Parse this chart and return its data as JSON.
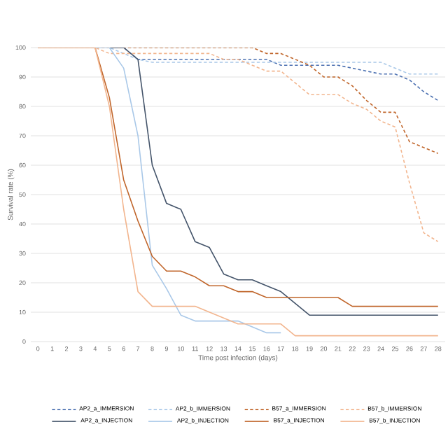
{
  "chart_data": {
    "type": "line",
    "xlabel": "Time post infection (days)",
    "ylabel": "Survival rate (%)",
    "categories": [
      "0",
      "1",
      "2",
      "3",
      "4",
      "5",
      "6",
      "7",
      "8",
      "9",
      "10",
      "11",
      "12",
      "13",
      "14",
      "15",
      "16",
      "17",
      "18",
      "19",
      "20",
      "21",
      "22",
      "23",
      "24",
      "25",
      "26",
      "27",
      "28"
    ],
    "ylim": [
      0,
      100
    ],
    "yticks": [
      0,
      10,
      20,
      30,
      40,
      50,
      60,
      70,
      80,
      90,
      100
    ],
    "grid": "y",
    "legend": "bottom",
    "marker": "none",
    "series": [
      {
        "name": "AP2_a_IMMERSION",
        "color": "#4a6fb0",
        "line_style": "dashed",
        "values": [
          null,
          null,
          null,
          null,
          null,
          100,
          100,
          96,
          96,
          96,
          96,
          96,
          96,
          96,
          96,
          96,
          96,
          94,
          94,
          94,
          94,
          94,
          93,
          92,
          91,
          91,
          89,
          85,
          82
        ]
      },
      {
        "name": "AP2_b_IMMERSION",
        "color": "#a9c8e8",
        "line_style": "dashed",
        "values": [
          null,
          null,
          null,
          null,
          100,
          100,
          98,
          96,
          95,
          95,
          95,
          95,
          95,
          95,
          95,
          95,
          95,
          95,
          95,
          95,
          95,
          95,
          95,
          95,
          95,
          93,
          91,
          91,
          91
        ]
      },
      {
        "name": "B57_a_IMMERSION",
        "color": "#c0652a",
        "line_style": "dashed",
        "values": [
          100,
          100,
          100,
          100,
          100,
          100,
          100,
          100,
          100,
          100,
          100,
          100,
          100,
          100,
          100,
          100,
          98,
          98,
          96,
          94,
          90,
          90,
          87,
          82,
          78,
          78,
          68,
          66,
          64
        ]
      },
      {
        "name": "B57_b_IMMERSION",
        "color": "#f2b58e",
        "line_style": "dashed",
        "values": [
          100,
          100,
          100,
          100,
          100,
          98,
          98,
          98,
          98,
          98,
          98,
          98,
          98,
          96,
          96,
          94,
          92,
          92,
          88,
          84,
          84,
          84,
          81,
          79,
          75,
          73,
          54,
          37,
          34
        ]
      },
      {
        "name": "AP2_a_INJECTION",
        "color": "#44546a",
        "line_style": "solid",
        "values": [
          null,
          null,
          null,
          null,
          null,
          100,
          100,
          96,
          60,
          47,
          45,
          34,
          32,
          23,
          21,
          21,
          19,
          17,
          13,
          9,
          9,
          9,
          9,
          9,
          9,
          9,
          9,
          9,
          9
        ]
      },
      {
        "name": "AP2_b_INJECTION",
        "color": "#a9c8e8",
        "line_style": "solid",
        "values": [
          null,
          null,
          null,
          null,
          100,
          100,
          93,
          70,
          26,
          18,
          9,
          7,
          7,
          7,
          7,
          5,
          3,
          3,
          null,
          null,
          null,
          null,
          null,
          null,
          null,
          null,
          null,
          null,
          null
        ]
      },
      {
        "name": "B57_a_INJECTION",
        "color": "#c0652a",
        "line_style": "solid",
        "values": [
          100,
          100,
          100,
          100,
          100,
          83,
          55,
          41,
          29,
          24,
          24,
          22,
          19,
          19,
          17,
          17,
          15,
          15,
          15,
          15,
          15,
          15,
          12,
          12,
          12,
          12,
          12,
          12,
          12
        ]
      },
      {
        "name": "B57_b_INJECTION",
        "color": "#f2b58e",
        "line_style": "solid",
        "values": [
          100,
          100,
          100,
          100,
          100,
          80,
          45,
          17,
          12,
          12,
          12,
          12,
          10,
          8,
          6,
          6,
          6,
          6,
          2,
          2,
          2,
          2,
          2,
          2,
          2,
          2,
          2,
          2,
          2
        ]
      }
    ]
  }
}
